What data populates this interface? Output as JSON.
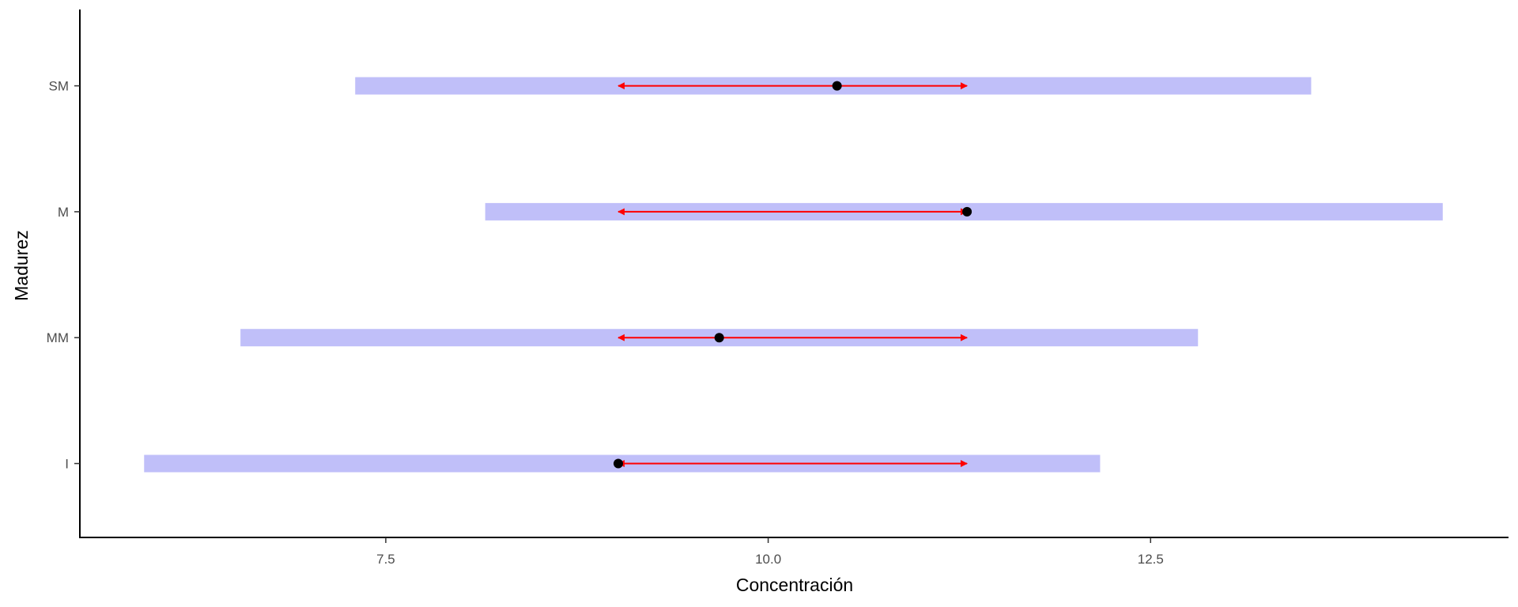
{
  "chart_data": {
    "type": "interval",
    "xlabel": "Concentración",
    "ylabel": "Madurez",
    "categories": [
      "I",
      "MM",
      "M",
      "SM"
    ],
    "x_ticks": [
      7.5,
      10.0,
      12.5
    ],
    "x_tick_labels": [
      "7.5",
      "10.0",
      "12.5"
    ],
    "xlim": [
      5.5,
      14.84
    ],
    "grid": false,
    "legend": "none",
    "colors": {
      "band": "#c0bff9",
      "arrow": "#ff0000",
      "point": "#000000",
      "axis": "#000000"
    },
    "series": [
      {
        "category": "I",
        "band_low": 5.92,
        "band_high": 12.17,
        "arrow_from": 9.02,
        "arrow_to": 11.3,
        "point": 9.02
      },
      {
        "category": "MM",
        "band_low": 6.55,
        "band_high": 12.81,
        "arrow_from": 9.02,
        "arrow_to": 11.3,
        "point": 9.68
      },
      {
        "category": "M",
        "band_low": 8.15,
        "band_high": 14.41,
        "arrow_from": 11.3,
        "arrow_to": 9.02,
        "point": 11.3
      },
      {
        "category": "SM",
        "band_low": 7.3,
        "band_high": 13.55,
        "arrow_from": 9.02,
        "arrow_to": 11.3,
        "point": 10.45
      }
    ]
  }
}
